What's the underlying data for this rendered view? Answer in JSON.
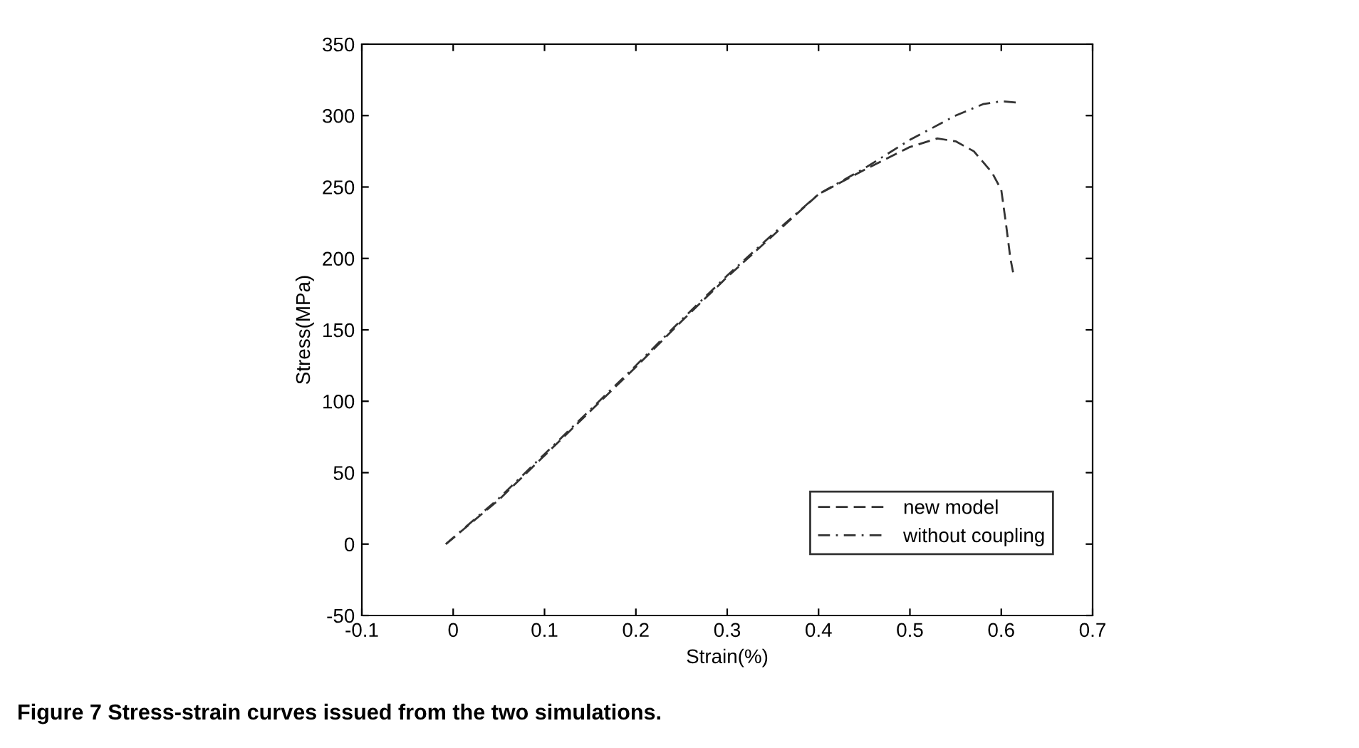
{
  "chart_data": {
    "type": "line",
    "xlabel": "Strain(%)",
    "ylabel": "Stress(MPa)",
    "annotations": [
      "Figure 7 Stress-strain curves issued from the two simulations."
    ],
    "xlim": [
      -0.1,
      0.7
    ],
    "xticks": [
      -0.1,
      0,
      0.1,
      0.2,
      0.3,
      0.4,
      0.5,
      0.6,
      0.7
    ],
    "ylim": [
      -50,
      350
    ],
    "yticks": [
      -50,
      0,
      50,
      100,
      150,
      200,
      250,
      300,
      350
    ],
    "grid": false,
    "legend": "bottom right",
    "marker": "none",
    "series": [
      {
        "name": "new model",
        "color": "#333333",
        "line_style": "dashed",
        "x": [
          -0.008,
          0.05,
          0.1,
          0.15,
          0.2,
          0.25,
          0.3,
          0.35,
          0.4,
          0.45,
          0.5,
          0.53,
          0.55,
          0.57,
          0.59,
          0.6,
          0.605,
          0.61,
          0.613
        ],
        "values": [
          0,
          31,
          62,
          93,
          124,
          156,
          187,
          216,
          245,
          262,
          278,
          284,
          282,
          275,
          260,
          248,
          225,
          200,
          190
        ]
      },
      {
        "name": "without coupling",
        "color": "#333333",
        "line_style": "dashdot",
        "x": [
          -0.008,
          0.05,
          0.1,
          0.15,
          0.2,
          0.25,
          0.3,
          0.35,
          0.4,
          0.45,
          0.5,
          0.55,
          0.58,
          0.6,
          0.62
        ],
        "values": [
          0,
          32,
          63,
          94,
          125,
          157,
          188,
          217,
          245,
          263,
          283,
          300,
          308,
          310,
          309
        ]
      }
    ]
  }
}
